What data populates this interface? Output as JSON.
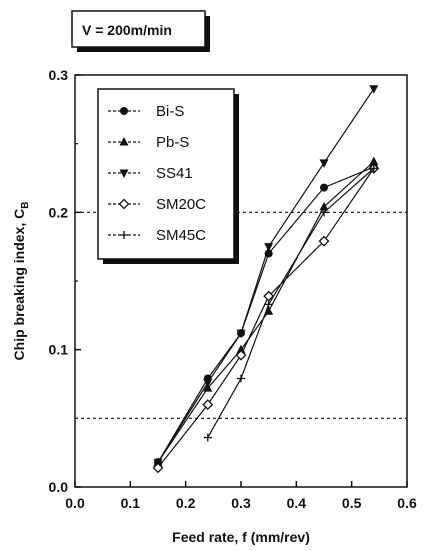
{
  "chart_data": {
    "type": "line",
    "annotation": "V = 200m/min",
    "xlabel": "Feed rate, f (mm/rev)",
    "ylabel_main": "Chip breaking index, C",
    "ylabel_sub": "B",
    "xlim": [
      0.0,
      0.6
    ],
    "ylim": [
      0.0,
      0.3
    ],
    "x_ticks": [
      "0.0",
      "0.1",
      "0.2",
      "0.3",
      "0.4",
      "0.5",
      "0.6"
    ],
    "y_ticks": [
      "0.0",
      "0.1",
      "0.2",
      "0.3"
    ],
    "reference_lines": [
      0.2,
      0.05
    ],
    "legend_position": "top-left",
    "series": [
      {
        "name": "Bi-S",
        "marker": "circle",
        "x": [
          0.15,
          0.24,
          0.3,
          0.35,
          0.45,
          0.54
        ],
        "y": [
          0.018,
          0.079,
          0.112,
          0.17,
          0.218,
          0.233
        ]
      },
      {
        "name": "Pb-S",
        "marker": "triangle-up",
        "x": [
          0.15,
          0.24,
          0.3,
          0.35,
          0.45,
          0.54
        ],
        "y": [
          0.018,
          0.072,
          0.1,
          0.128,
          0.204,
          0.237
        ]
      },
      {
        "name": "SS41",
        "marker": "triangle-down",
        "x": [
          0.15,
          0.24,
          0.3,
          0.35,
          0.45,
          0.54
        ],
        "y": [
          0.018,
          0.076,
          0.112,
          0.175,
          0.236,
          0.29
        ]
      },
      {
        "name": "SM20C",
        "marker": "diamond-open",
        "x": [
          0.15,
          0.24,
          0.3,
          0.35,
          0.45,
          0.54
        ],
        "y": [
          0.014,
          0.06,
          0.096,
          0.139,
          0.179,
          0.232
        ]
      },
      {
        "name": "SM45C",
        "marker": "plus",
        "x": [
          0.24,
          0.3,
          0.35,
          0.45,
          0.54
        ],
        "y": [
          0.036,
          0.079,
          0.133,
          0.2,
          0.232
        ]
      }
    ]
  }
}
